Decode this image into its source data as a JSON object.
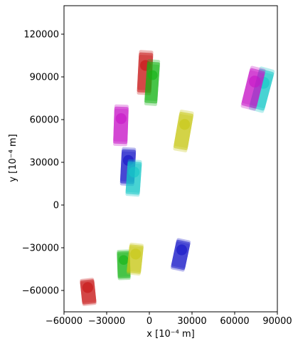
{
  "chart_data": {
    "type": "scatter",
    "xlabel": "x [10⁻⁴ m]",
    "ylabel": "y [10⁻⁴ m]",
    "xlim": [
      -60000,
      90000
    ],
    "ylim": [
      -75000,
      140000
    ],
    "xticks": [
      -60000,
      -30000,
      0,
      30000,
      60000,
      90000
    ],
    "yticks": [
      -60000,
      -30000,
      0,
      30000,
      60000,
      90000,
      120000
    ],
    "xtick_labels": [
      "−60000",
      "−30000",
      "0",
      "30000",
      "60000",
      "90000"
    ],
    "ytick_labels": [
      "−60000",
      "−30000",
      "0",
      "30000",
      "60000",
      "90000",
      "120000"
    ],
    "grid": false,
    "legend": "none",
    "series": [
      {
        "color": "#c81414",
        "points": [
          {
            "x": -43000,
            "y": -61000,
            "w": 10000,
            "h": 17000,
            "angle": -6
          },
          {
            "x": -3000,
            "y": 93000,
            "w": 10000,
            "h": 28000,
            "angle": 3
          }
        ]
      },
      {
        "color": "#14b414",
        "points": [
          {
            "x": -18000,
            "y": -42000,
            "w": 9000,
            "h": 19000,
            "angle": -2
          },
          {
            "x": 2000,
            "y": 86000,
            "w": 9000,
            "h": 29000,
            "angle": 4
          }
        ]
      },
      {
        "color": "#c8c814",
        "points": [
          {
            "x": -10000,
            "y": -38000,
            "w": 10000,
            "h": 20000,
            "angle": 6
          },
          {
            "x": 24000,
            "y": 52000,
            "w": 10000,
            "h": 26000,
            "angle": 10
          }
        ]
      },
      {
        "color": "#1414c8",
        "points": [
          {
            "x": -15000,
            "y": 27000,
            "w": 10000,
            "h": 24000,
            "angle": 3
          },
          {
            "x": 22000,
            "y": -35000,
            "w": 10000,
            "h": 20000,
            "angle": 12
          }
        ]
      },
      {
        "color": "#14c8c8",
        "points": [
          {
            "x": -11000,
            "y": 19000,
            "w": 10000,
            "h": 23000,
            "angle": 4
          },
          {
            "x": 79000,
            "y": 81000,
            "w": 11000,
            "h": 28000,
            "angle": 15
          }
        ]
      },
      {
        "color": "#c814c8",
        "points": [
          {
            "x": -20000,
            "y": 56000,
            "w": 10000,
            "h": 26000,
            "angle": 2
          },
          {
            "x": 73000,
            "y": 82000,
            "w": 11000,
            "h": 27000,
            "angle": 14
          }
        ]
      }
    ]
  }
}
